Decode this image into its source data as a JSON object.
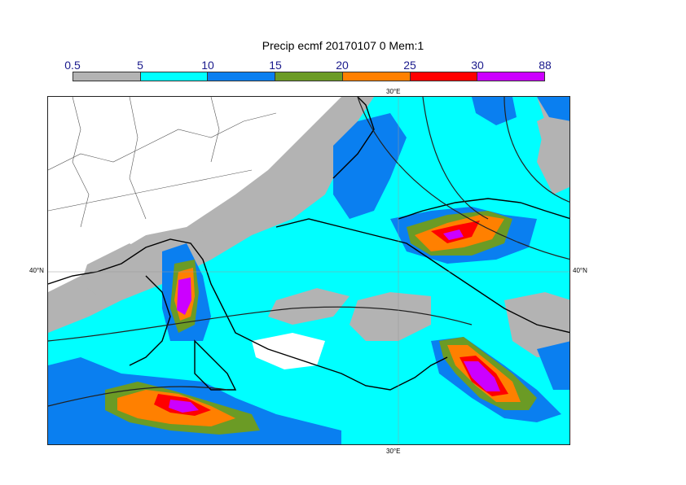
{
  "title": "Precip ecmf 20170107 0 Mem:1",
  "legend": {
    "values": [
      "0.5",
      "5",
      "10",
      "15",
      "20",
      "25",
      "30",
      "88"
    ],
    "colors": [
      "#b3b3b3",
      "#00ffff",
      "#0a7ff0",
      "#6b9b25",
      "#ff8000",
      "#ff0000",
      "#cc00ff"
    ]
  },
  "axes": {
    "lon_top": "30°E",
    "lon_bottom": "30°E",
    "lat_left": "40°N",
    "lat_right": "40°N"
  }
}
